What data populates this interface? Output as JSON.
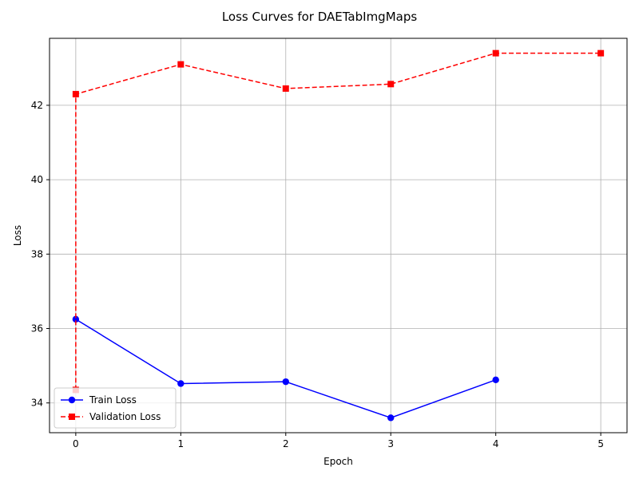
{
  "chart_data": {
    "type": "line",
    "title": "Loss Curves for DAETabImgMaps",
    "xlabel": "Epoch",
    "ylabel": "Loss",
    "xlim": [
      -0.25,
      5.25
    ],
    "ylim": [
      33.2,
      43.8
    ],
    "xticks": [
      0,
      1,
      2,
      3,
      4,
      5
    ],
    "yticks": [
      34,
      36,
      38,
      40,
      42
    ],
    "grid": true,
    "legend_position": "lower-left",
    "series": [
      {
        "name": "Train Loss",
        "color": "#0000ff",
        "line_style": "solid",
        "marker": "circle",
        "x": [
          0,
          1,
          2,
          3,
          4
        ],
        "y": [
          36.25,
          34.52,
          34.57,
          33.6,
          34.62
        ]
      },
      {
        "name": "Validation Loss",
        "color": "#ff0000",
        "line_style": "dashed",
        "marker": "square",
        "x": [
          0,
          0,
          1,
          2,
          3,
          4,
          5
        ],
        "y": [
          34.35,
          42.3,
          43.1,
          42.45,
          42.57,
          43.4,
          43.4
        ]
      }
    ]
  }
}
